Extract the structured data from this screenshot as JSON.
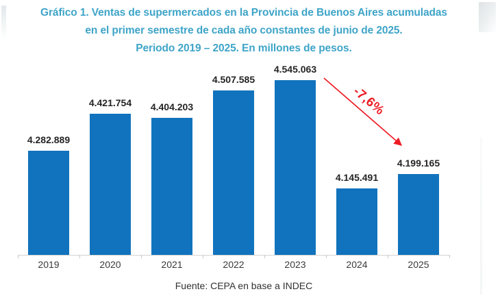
{
  "title": {
    "line1": "Gráfico 1. Ventas de supermercados en la Provincia de Buenos Aires acumuladas",
    "line2": "en el primer semestre de cada año constantes de junio de 2025.",
    "line3": "Periodo 2019 – 2025. En millones de pesos."
  },
  "footer": {
    "source": "Fuente: CEPA en base a INDEC"
  },
  "annotation": {
    "text": "-7,6%",
    "color": "#ED1C24"
  },
  "colors": {
    "bar": "#1173BD",
    "title_teal": "#3EA4C8",
    "value_label": "#242424",
    "axis_gray": "#D3D3D3",
    "annotation_red": "#ED1C24"
  },
  "chart_data": {
    "type": "bar",
    "categories": [
      "2019",
      "2020",
      "2021",
      "2022",
      "2023",
      "2024",
      "2025"
    ],
    "values": [
      4282889,
      4421754,
      4404203,
      4507585,
      4545063,
      4145491,
      4199165
    ],
    "value_labels": [
      "4.282.889",
      "4.421.754",
      "4.404.203",
      "4.507.585",
      "4.545.063",
      "4.145.491",
      "4.199.165"
    ],
    "title": "Gráfico 1. Ventas de supermercados en la Provincia de Buenos Aires acumuladas en el primer semestre de cada año constantes de junio de 2025. Periodo 2019 – 2025. En millones de pesos.",
    "xlabel": "",
    "ylabel": "",
    "ylim": [
      3900000,
      4600000
    ],
    "grid": false,
    "legend": "none",
    "bar_color": "#1173BD",
    "annotation": {
      "text": "-7,6%",
      "from_category": "2023",
      "to_category": "2025",
      "color": "#ED1C24"
    },
    "source": "Fuente: CEPA en base a INDEC"
  }
}
